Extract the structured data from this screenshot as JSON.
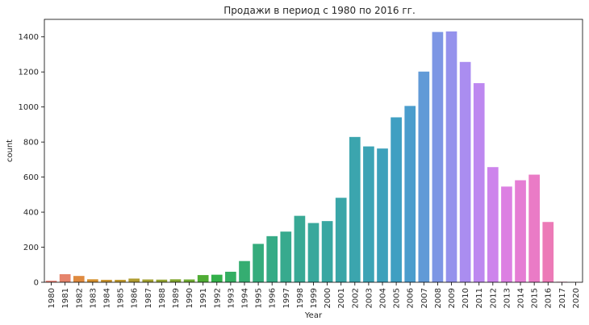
{
  "chart_data": {
    "type": "bar",
    "title": "Продажи в период с 1980 по 2016 гг.",
    "xlabel": "Year",
    "ylabel": "count",
    "ylim": [
      0,
      1500
    ],
    "yticks": [
      0,
      200,
      400,
      600,
      800,
      1000,
      1200,
      1400
    ],
    "grid": false,
    "categories": [
      "1980",
      "1981",
      "1982",
      "1983",
      "1984",
      "1985",
      "1986",
      "1987",
      "1988",
      "1989",
      "1990",
      "1991",
      "1992",
      "1993",
      "1994",
      "1995",
      "1996",
      "1997",
      "1998",
      "1999",
      "2000",
      "2001",
      "2002",
      "2003",
      "2004",
      "2005",
      "2006",
      "2007",
      "2008",
      "2009",
      "2010",
      "2011",
      "2012",
      "2013",
      "2014",
      "2015",
      "2016",
      "2017",
      "2020"
    ],
    "values": [
      9,
      46,
      36,
      17,
      14,
      14,
      21,
      16,
      15,
      17,
      16,
      41,
      43,
      60,
      121,
      219,
      263,
      289,
      379,
      338,
      349,
      482,
      829,
      775,
      763,
      941,
      1006,
      1202,
      1428,
      1431,
      1257,
      1136,
      657,
      546,
      582,
      614,
      344,
      3,
      1
    ],
    "colors": [
      "#e8867b",
      "#e6846c",
      "#df8a3f",
      "#d48f2c",
      "#c99430",
      "#bd982f",
      "#b09c30",
      "#a2a030",
      "#93a330",
      "#82a630",
      "#6ea930",
      "#4fac34",
      "#33b04a",
      "#34ae62",
      "#35ad71",
      "#35ac7c",
      "#36ab86",
      "#37aa8e",
      "#38a995",
      "#39a89c",
      "#39a7a2",
      "#3aa6a8",
      "#3ba5ae",
      "#3ca3b5",
      "#3da1bb",
      "#3f9fc2",
      "#4b9dcd",
      "#619ad7",
      "#7d96e4",
      "#9592ec",
      "#aa8df0",
      "#bd88f0",
      "#cd84ec",
      "#dc80e2",
      "#e57dd4",
      "#ea7bc6",
      "#ec7ab7",
      "#ec7ba6",
      "#ec7c96"
    ]
  }
}
